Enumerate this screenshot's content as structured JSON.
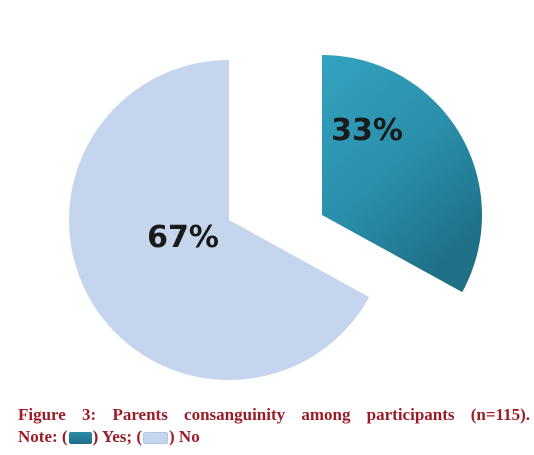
{
  "chart_data": {
    "type": "pie",
    "exploded": true,
    "slices": [
      {
        "name": "Yes",
        "value": 33,
        "label": "33%",
        "color": "#2a95b1"
      },
      {
        "name": "No",
        "value": 67,
        "label": "67%",
        "color": "#c5d5ed"
      }
    ]
  },
  "caption": {
    "figure_label": "Figure 3:",
    "title": "Parents consanguinity among participants (n=115).",
    "note_label": "Note:",
    "yes_text": ") Yes;",
    "no_text": ") No"
  },
  "colors": {
    "caption_text": "#9a1c27",
    "label_text": "#1a1a1a",
    "yes_gradient_light": "#33a3bf",
    "yes_gradient_dark": "#1f6f86"
  }
}
